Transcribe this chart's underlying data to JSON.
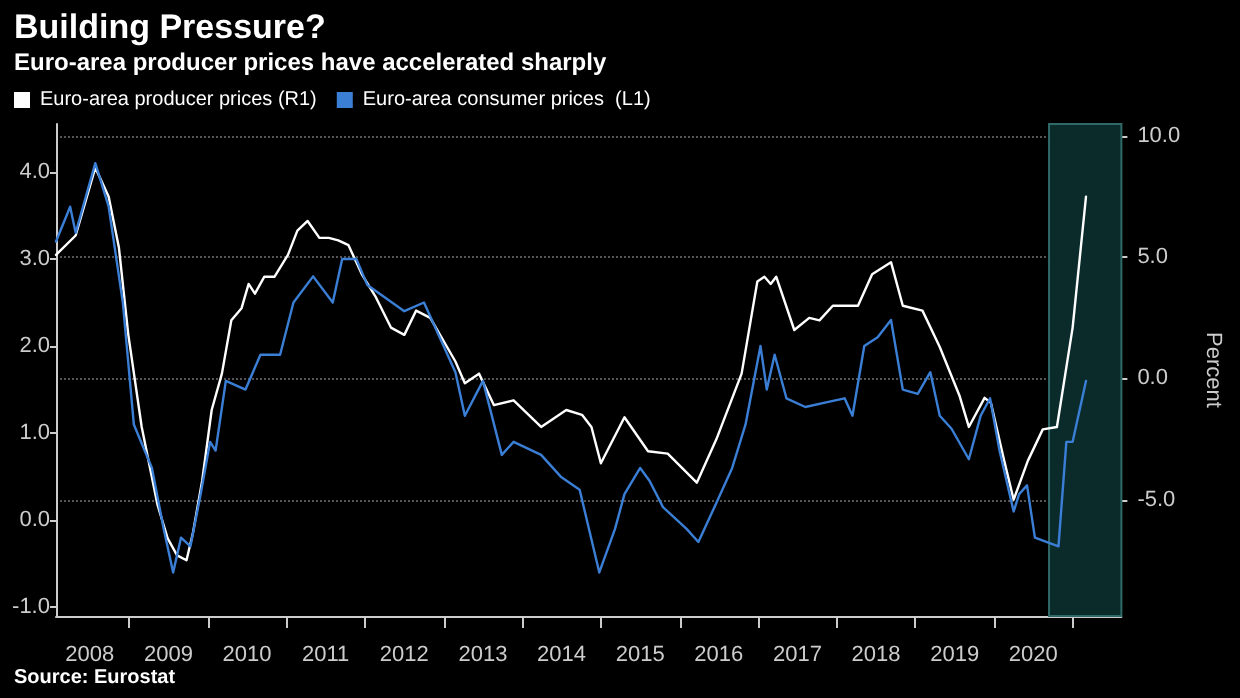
{
  "chart_data": {
    "type": "line",
    "title": "Building Pressure?",
    "subtitle": "Euro-area producer prices have accelerated sharply",
    "y2label": "Percent",
    "annotations": [
      "Source: Eurostat"
    ],
    "series": [
      {
        "name": "Euro-area producer prices (R1)",
        "color": "#ffffff",
        "axis": "y2",
        "x": [
          2008.07,
          2008.32,
          2008.57,
          2008.74,
          2008.87,
          2008.99,
          2009.16,
          2009.36,
          2009.49,
          2009.61,
          2009.73,
          2009.81,
          2009.93,
          2010.05,
          2010.18,
          2010.3,
          2010.43,
          2010.52,
          2010.6,
          2010.72,
          2010.85,
          2011.02,
          2011.14,
          2011.27,
          2011.42,
          2011.54,
          2011.66,
          2011.79,
          2011.96,
          2012.13,
          2012.33,
          2012.5,
          2012.65,
          2012.83,
          2013.15,
          2013.27,
          2013.45,
          2013.64,
          2013.89,
          2014.24,
          2014.56,
          2014.76,
          2014.88,
          2015.0,
          2015.3,
          2015.6,
          2015.85,
          2016.22,
          2016.47,
          2016.79,
          2016.99,
          2017.08,
          2017.16,
          2017.23,
          2017.46,
          2017.65,
          2017.78,
          2017.95,
          2018.27,
          2018.45,
          2018.69,
          2018.84,
          2019.09,
          2019.31,
          2019.56,
          2019.68,
          2019.88,
          2019.96,
          2020.13,
          2020.25,
          2020.43,
          2020.62,
          2020.8,
          2021.0,
          2021.17
        ],
        "values": [
          5.1,
          5.9,
          8.7,
          7.5,
          5.4,
          1.8,
          -2.0,
          -5.2,
          -6.6,
          -7.3,
          -7.5,
          -6.4,
          -4.2,
          -1.3,
          0.2,
          2.4,
          2.9,
          3.9,
          3.5,
          4.2,
          4.2,
          5.1,
          6.1,
          6.5,
          5.8,
          5.8,
          5.7,
          5.5,
          4.3,
          3.4,
          2.1,
          1.8,
          2.8,
          2.5,
          0.7,
          -0.2,
          0.2,
          -1.1,
          -0.9,
          -2.0,
          -1.3,
          -1.5,
          -2.0,
          -3.5,
          -1.6,
          -3.0,
          -3.1,
          -4.3,
          -2.5,
          0.2,
          4.0,
          4.2,
          3.9,
          4.2,
          2.0,
          2.5,
          2.4,
          3.0,
          3.0,
          4.3,
          4.8,
          3.0,
          2.8,
          1.3,
          -0.7,
          -2.0,
          -0.8,
          -1.0,
          -3.4,
          -5.0,
          -3.4,
          -2.1,
          -2.0,
          2.1,
          7.5
        ]
      },
      {
        "name": "Euro-area consumer prices  (L1)",
        "color": "#3a7fd5",
        "x": [
          2008.07,
          2008.25,
          2008.32,
          2008.57,
          2008.74,
          2008.92,
          2009.06,
          2009.29,
          2009.44,
          2009.56,
          2009.66,
          2009.78,
          2009.91,
          2010.03,
          2010.1,
          2010.23,
          2010.48,
          2010.67,
          2010.92,
          2011.09,
          2011.34,
          2011.59,
          2011.71,
          2011.89,
          2012.03,
          2012.5,
          2012.75,
          2013.15,
          2013.27,
          2013.5,
          2013.74,
          2013.89,
          2014.24,
          2014.49,
          2014.73,
          2014.98,
          2015.18,
          2015.3,
          2015.5,
          2015.62,
          2015.79,
          2016.09,
          2016.24,
          2016.47,
          2016.67,
          2016.84,
          2017.03,
          2017.11,
          2017.21,
          2017.36,
          2017.6,
          2017.85,
          2018.1,
          2018.2,
          2018.35,
          2018.52,
          2018.69,
          2018.84,
          2019.03,
          2019.19,
          2019.31,
          2019.46,
          2019.68,
          2019.83,
          2019.95,
          2020.07,
          2020.25,
          2020.32,
          2020.42,
          2020.52,
          2020.82,
          2020.92,
          2021.0,
          2021.17
        ],
        "values": [
          3.2,
          3.6,
          3.3,
          4.1,
          3.6,
          2.5,
          1.1,
          0.6,
          -0.1,
          -0.6,
          -0.2,
          -0.3,
          0.3,
          0.9,
          0.8,
          1.6,
          1.5,
          1.9,
          1.9,
          2.5,
          2.8,
          2.5,
          3.0,
          3.0,
          2.7,
          2.4,
          2.5,
          1.7,
          1.2,
          1.6,
          0.75,
          0.9,
          0.75,
          0.5,
          0.35,
          -0.6,
          -0.1,
          0.3,
          0.6,
          0.45,
          0.15,
          -0.1,
          -0.25,
          0.2,
          0.6,
          1.1,
          2.0,
          1.5,
          1.9,
          1.4,
          1.3,
          1.35,
          1.4,
          1.2,
          2.0,
          2.1,
          2.3,
          1.5,
          1.45,
          1.7,
          1.2,
          1.05,
          0.7,
          1.2,
          1.4,
          0.8,
          0.1,
          0.3,
          0.4,
          -0.2,
          -0.3,
          0.9,
          0.9,
          1.6
        ]
      }
    ],
    "xlim": [
      2008.07,
      2021.62
    ],
    "xticks": [
      {
        "value": 2008.5,
        "label": "2008"
      },
      {
        "value": 2009.5,
        "label": "2009"
      },
      {
        "value": 2010.5,
        "label": "2010"
      },
      {
        "value": 2011.5,
        "label": "2011"
      },
      {
        "value": 2012.5,
        "label": "2012"
      },
      {
        "value": 2013.5,
        "label": "2013"
      },
      {
        "value": 2014.5,
        "label": "2014"
      },
      {
        "value": 2015.5,
        "label": "2015"
      },
      {
        "value": 2016.5,
        "label": "2016"
      },
      {
        "value": 2017.5,
        "label": "2017"
      },
      {
        "value": 2018.5,
        "label": "2018"
      },
      {
        "value": 2019.5,
        "label": "2019"
      },
      {
        "value": 2020.5,
        "label": "2020"
      },
      {
        "value": 2009,
        "label": null
      },
      {
        "value": 2010,
        "label": null
      },
      {
        "value": 2011,
        "label": null
      },
      {
        "value": 2012,
        "label": null
      },
      {
        "value": 2013,
        "label": null
      },
      {
        "value": 2014,
        "label": null
      },
      {
        "value": 2015,
        "label": null
      },
      {
        "value": 2016,
        "label": null
      },
      {
        "value": 2017,
        "label": null
      },
      {
        "value": 2018,
        "label": null
      },
      {
        "value": 2019,
        "label": null
      },
      {
        "value": 2020,
        "label": null
      },
      {
        "value": 2021,
        "label": null
      }
    ],
    "ylim": [
      -1.1,
      4.55
    ],
    "yticks": [
      {
        "value": -1,
        "label": "-1.0"
      },
      {
        "value": 0,
        "label": "0.0"
      },
      {
        "value": 1,
        "label": "1.0"
      },
      {
        "value": 2,
        "label": "2.0"
      },
      {
        "value": 3,
        "label": "3.0"
      },
      {
        "value": 4,
        "label": "4.0"
      }
    ],
    "y2lim": [
      -9.8,
      10.5
    ],
    "y2ticks": [
      {
        "value": -5,
        "label": "-5.0"
      },
      {
        "value": 0,
        "label": "0.0"
      },
      {
        "value": 5,
        "label": "5.0"
      },
      {
        "value": 10,
        "label": "10.0"
      }
    ],
    "bands": [
      {
        "axis": "x",
        "from": 2020.7,
        "to": 2021.62,
        "color": "#0b2b2b"
      }
    ],
    "grid": "y",
    "legend": "top left",
    "marker": "none",
    "line_style": "solid"
  }
}
